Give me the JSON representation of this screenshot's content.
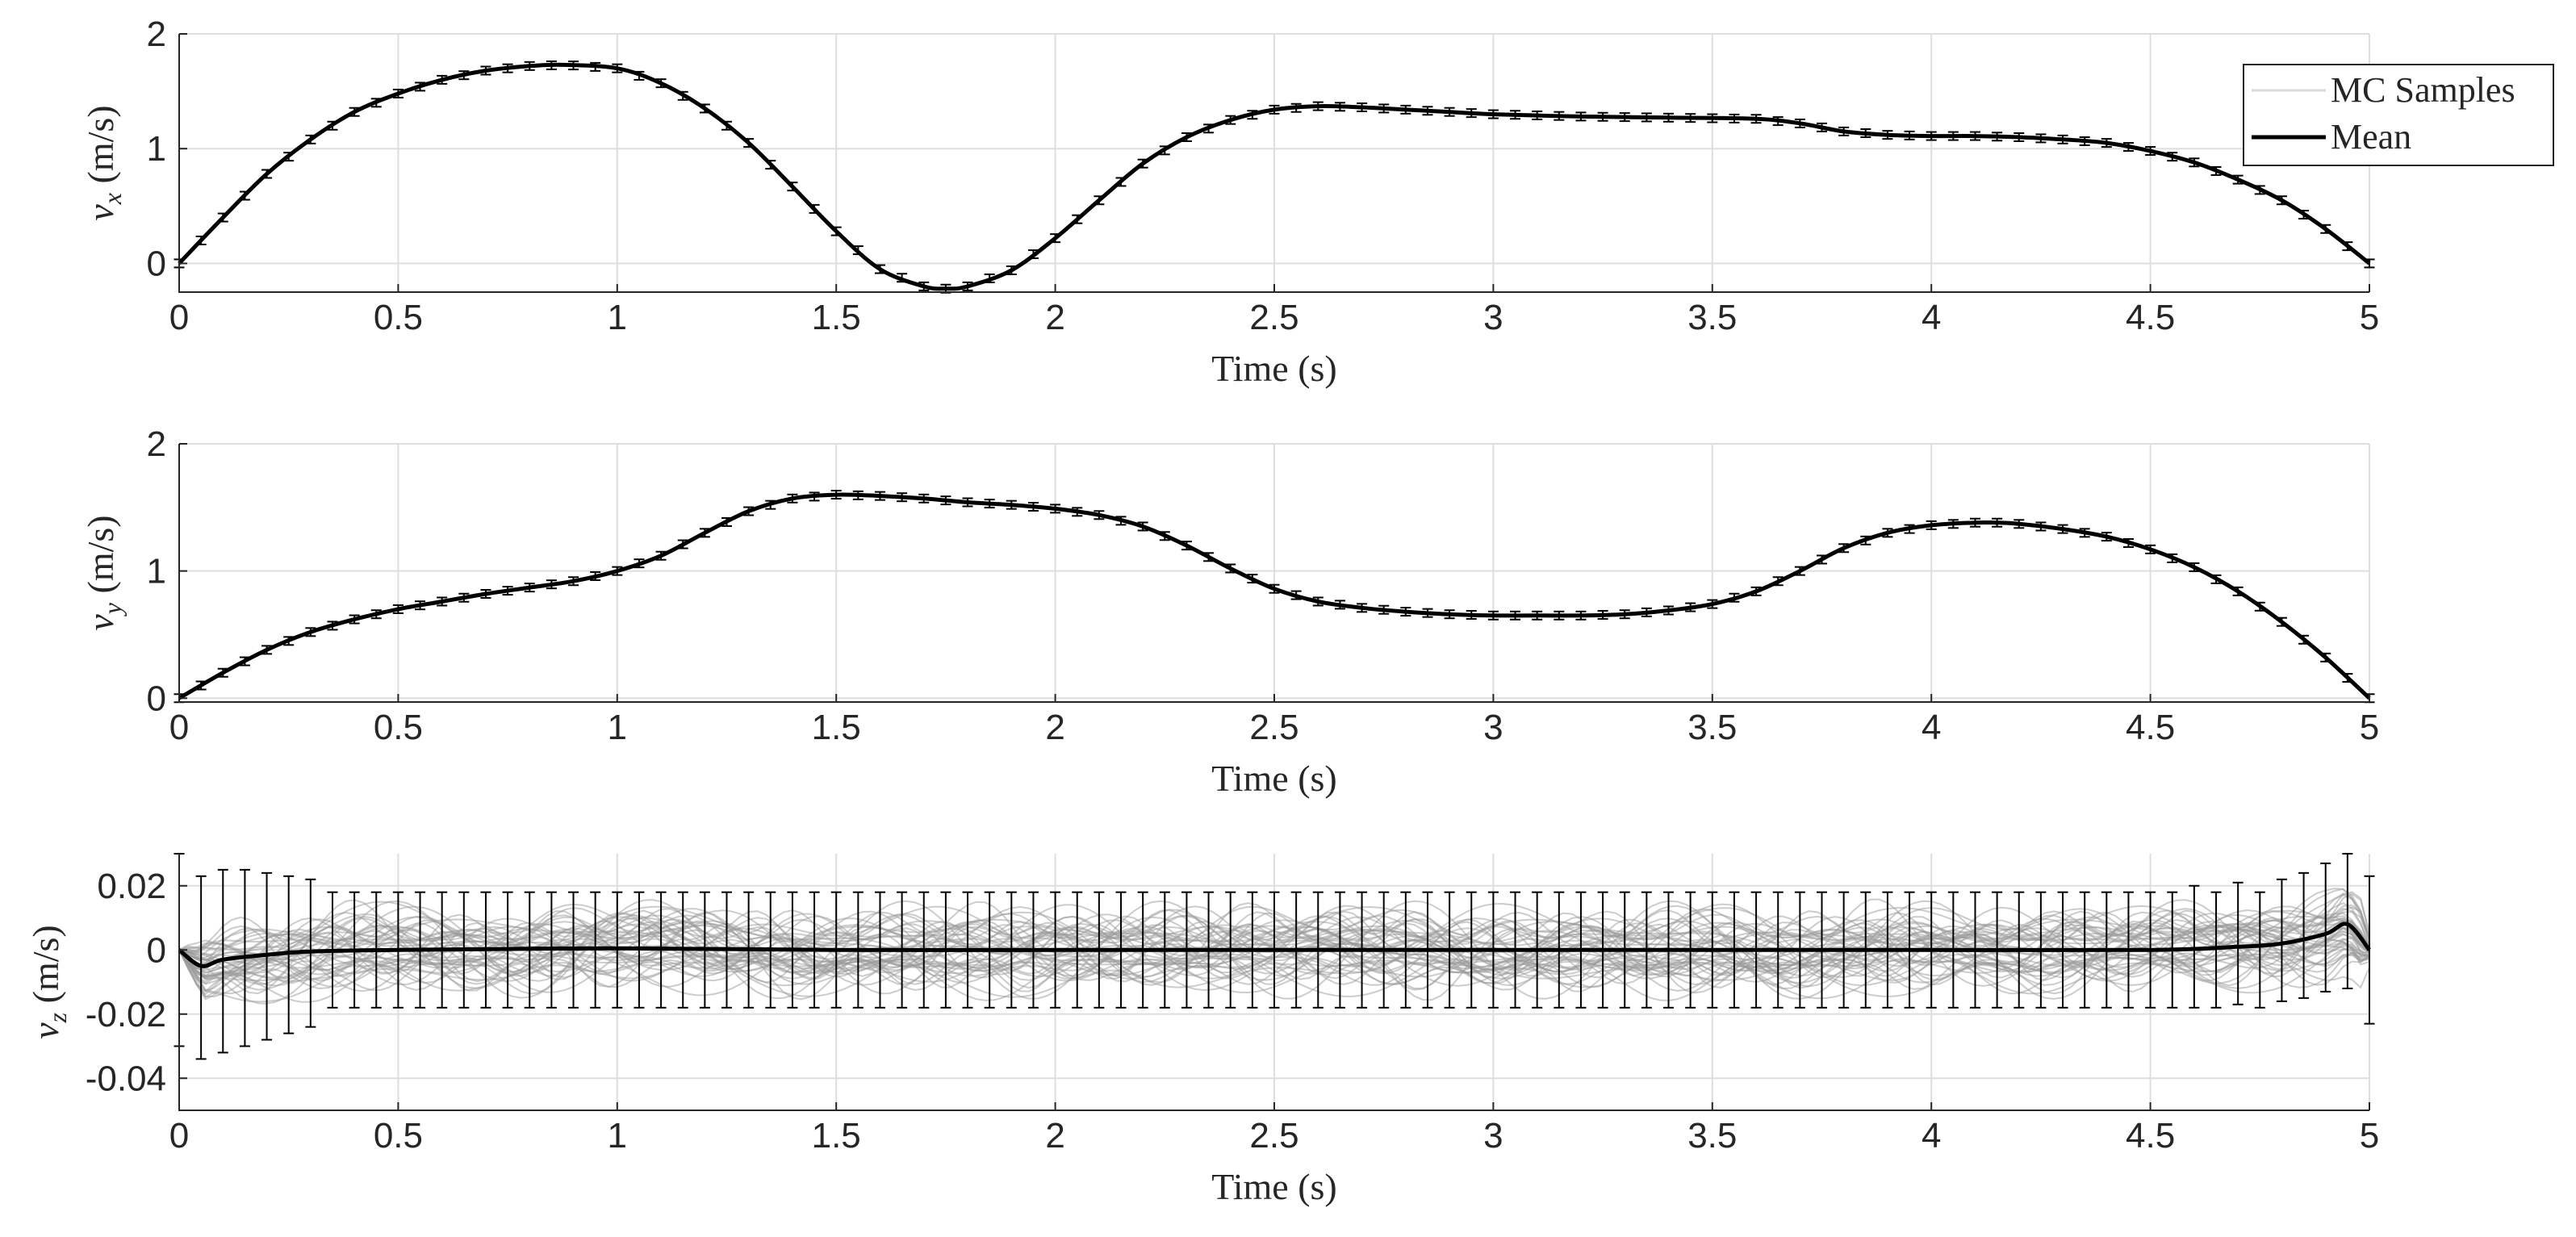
{
  "chart_data": [
    {
      "id": "vx",
      "type": "line",
      "xlabel": "Time (s)",
      "ylabel": "v",
      "ylabel_sub": "x",
      "ylabel_unit": "(m/s)",
      "xlim": [
        0,
        5
      ],
      "ylim": [
        -0.25,
        2
      ],
      "xticks": [
        0,
        0.5,
        1,
        1.5,
        2,
        2.5,
        3,
        3.5,
        4,
        4.5,
        5
      ],
      "xtick_labels": [
        "0",
        "0.5",
        "1",
        "1.5",
        "2",
        "2.5",
        "3",
        "3.5",
        "4",
        "4.5",
        "5"
      ],
      "yticks": [
        0,
        1,
        2
      ],
      "ytick_labels": [
        "0",
        "1",
        "2"
      ],
      "grid": true,
      "errorbar_half_width": 0.012,
      "mc_spread": 0,
      "series": [
        {
          "name": "Mean",
          "x": [
            0,
            0.1,
            0.2,
            0.3,
            0.4,
            0.5,
            0.6,
            0.7,
            0.8,
            0.88,
            1.0,
            1.1,
            1.2,
            1.3,
            1.4,
            1.5,
            1.6,
            1.7,
            1.75,
            1.8,
            1.9,
            2.0,
            2.1,
            2.2,
            2.3,
            2.4,
            2.5,
            2.6,
            2.7,
            2.8,
            2.9,
            3.0,
            3.2,
            3.4,
            3.6,
            3.7,
            3.8,
            3.9,
            4.0,
            4.1,
            4.2,
            4.3,
            4.4,
            4.5,
            4.6,
            4.7,
            4.8,
            4.9,
            5.0
          ],
          "y": [
            0.0,
            0.4,
            0.78,
            1.08,
            1.32,
            1.48,
            1.6,
            1.68,
            1.72,
            1.73,
            1.7,
            1.57,
            1.35,
            1.05,
            0.67,
            0.28,
            -0.05,
            -0.2,
            -0.22,
            -0.2,
            -0.06,
            0.22,
            0.55,
            0.87,
            1.1,
            1.25,
            1.34,
            1.37,
            1.36,
            1.34,
            1.32,
            1.3,
            1.28,
            1.27,
            1.26,
            1.22,
            1.15,
            1.12,
            1.11,
            1.11,
            1.1,
            1.08,
            1.05,
            0.98,
            0.88,
            0.73,
            0.55,
            0.3,
            0.0
          ]
        }
      ]
    },
    {
      "id": "vy",
      "type": "line",
      "xlabel": "Time (s)",
      "ylabel": "v",
      "ylabel_sub": "y",
      "ylabel_unit": "(m/s)",
      "xlim": [
        0,
        5
      ],
      "ylim": [
        -0.03,
        2
      ],
      "xticks": [
        0,
        0.5,
        1,
        1.5,
        2,
        2.5,
        3,
        3.5,
        4,
        4.5,
        5
      ],
      "xtick_labels": [
        "0",
        "0.5",
        "1",
        "1.5",
        "2",
        "2.5",
        "3",
        "3.5",
        "4",
        "4.5",
        "5"
      ],
      "yticks": [
        0,
        1,
        2
      ],
      "ytick_labels": [
        "0",
        "1",
        "2"
      ],
      "grid": true,
      "errorbar_half_width": 0.012,
      "mc_spread": 0,
      "series": [
        {
          "name": "Mean",
          "x": [
            0,
            0.1,
            0.2,
            0.3,
            0.4,
            0.5,
            0.6,
            0.7,
            0.8,
            0.9,
            1.0,
            1.1,
            1.2,
            1.3,
            1.4,
            1.5,
            1.6,
            1.7,
            1.8,
            1.9,
            2.0,
            2.1,
            2.2,
            2.3,
            2.4,
            2.5,
            2.6,
            2.7,
            2.8,
            2.9,
            3.0,
            3.1,
            3.2,
            3.3,
            3.4,
            3.5,
            3.6,
            3.7,
            3.8,
            3.9,
            4.0,
            4.1,
            4.15,
            4.2,
            4.3,
            4.4,
            4.5,
            4.6,
            4.7,
            4.8,
            4.9,
            5.0
          ],
          "y": [
            0.0,
            0.2,
            0.38,
            0.52,
            0.62,
            0.7,
            0.76,
            0.82,
            0.87,
            0.92,
            1.0,
            1.12,
            1.3,
            1.47,
            1.57,
            1.6,
            1.59,
            1.57,
            1.54,
            1.52,
            1.49,
            1.44,
            1.35,
            1.2,
            1.02,
            0.86,
            0.76,
            0.71,
            0.68,
            0.66,
            0.65,
            0.65,
            0.65,
            0.66,
            0.69,
            0.74,
            0.84,
            1.0,
            1.18,
            1.3,
            1.36,
            1.38,
            1.38,
            1.37,
            1.33,
            1.27,
            1.17,
            1.03,
            0.84,
            0.6,
            0.32,
            0.0
          ]
        }
      ]
    },
    {
      "id": "vz",
      "type": "line",
      "xlabel": "Time (s)",
      "ylabel": "v",
      "ylabel_sub": "z",
      "ylabel_unit": "(m/s)",
      "xlim": [
        0,
        5
      ],
      "ylim": [
        -0.05,
        0.03
      ],
      "xticks": [
        0,
        0.5,
        1,
        1.5,
        2,
        2.5,
        3,
        3.5,
        4,
        4.5,
        5
      ],
      "xtick_labels": [
        "0",
        "0.5",
        "1",
        "1.5",
        "2",
        "2.5",
        "3",
        "3.5",
        "4",
        "4.5",
        "5"
      ],
      "yticks": [
        0.02,
        0,
        -0.02,
        -0.04
      ],
      "ytick_labels": [
        "0.02",
        "0",
        "-0.02",
        "-0.04"
      ],
      "grid": true,
      "errorbar_half_width": 0.012,
      "mc_spread": 0.016,
      "series": [
        {
          "name": "Mean",
          "x": [
            0,
            0.05,
            0.1,
            0.2,
            0.3,
            0.5,
            1.0,
            1.5,
            2.0,
            2.5,
            3.0,
            3.5,
            4.0,
            4.5,
            4.7,
            4.8,
            4.9,
            4.95,
            5.0
          ],
          "y": [
            0.0,
            -0.005,
            -0.003,
            -0.0015,
            -0.0005,
            0.0,
            0.0005,
            0.0,
            0.0,
            0.0,
            0.0,
            0.0,
            0.0,
            0.0,
            0.001,
            0.002,
            0.005,
            0.008,
            0.0
          ]
        }
      ],
      "errorbars": {
        "x": [
          0,
          0.05,
          0.1,
          0.15,
          0.2,
          0.25,
          0.3,
          4.6,
          4.7,
          4.8,
          4.85,
          4.9,
          4.95,
          5.0
        ],
        "upper": [
          0.03,
          0.023,
          0.025,
          0.025,
          0.024,
          0.023,
          0.022,
          0.02,
          0.021,
          0.022,
          0.024,
          0.027,
          0.03,
          0.023
        ],
        "lower": [
          -0.03,
          -0.034,
          -0.032,
          -0.03,
          -0.028,
          -0.026,
          -0.024,
          -0.018,
          -0.017,
          -0.016,
          -0.015,
          -0.013,
          -0.012,
          -0.023
        ],
        "default_upper": 0.018,
        "default_lower": -0.018,
        "spacing": 0.05
      }
    }
  ],
  "legend": {
    "placement": "top-right",
    "entries": [
      {
        "label": "MC Samples",
        "color": "#d9d9d9"
      },
      {
        "label": "Mean",
        "color": "#000000"
      }
    ]
  },
  "colors": {
    "mean": "#000000",
    "mc_samples": "#9a9a9a",
    "grid": "#dedede",
    "axis": "#262626"
  }
}
